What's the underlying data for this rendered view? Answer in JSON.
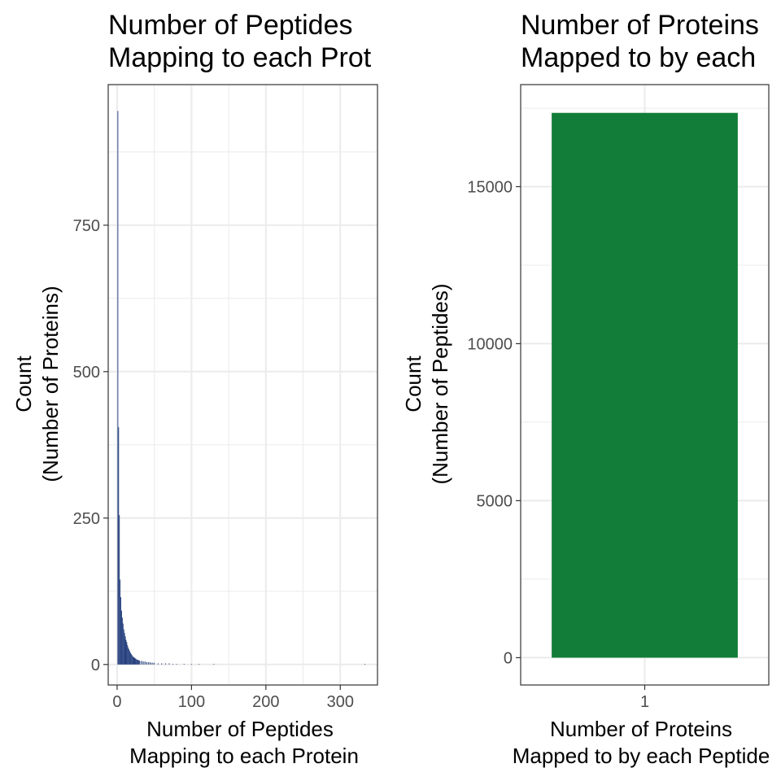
{
  "chart_data": [
    {
      "type": "bar",
      "title_lines": [
        "Number of Peptides",
        "Mapping to each Prot"
      ],
      "xlabel_lines": [
        "Number of Peptides",
        "Mapping to each Protein"
      ],
      "ylabel_lines": [
        "Count",
        "(Number of Proteins)"
      ],
      "xlim": [
        -12,
        350
      ],
      "ylim": [
        -35,
        990
      ],
      "x_ticks": [
        0,
        100,
        200,
        300
      ],
      "x_tick_labels": [
        "0",
        "100",
        "200",
        "300"
      ],
      "y_ticks": [
        0,
        250,
        500,
        750
      ],
      "y_tick_labels": [
        "0",
        "250",
        "500",
        "750"
      ],
      "bar_color": "#1f3a7a",
      "x": [
        1,
        2,
        3,
        4,
        5,
        6,
        7,
        8,
        9,
        10,
        11,
        12,
        13,
        14,
        15,
        16,
        17,
        18,
        19,
        20,
        21,
        22,
        23,
        24,
        25,
        26,
        27,
        28,
        29,
        30,
        32,
        34,
        36,
        38,
        40,
        42,
        44,
        46,
        48,
        50,
        55,
        60,
        65,
        70,
        75,
        80,
        90,
        100,
        110,
        130,
        333
      ],
      "values": [
        945,
        405,
        255,
        145,
        115,
        92,
        80,
        70,
        60,
        54,
        48,
        42,
        38,
        33,
        29,
        26,
        23,
        20,
        18,
        16,
        14,
        13,
        12,
        11,
        10,
        9,
        8,
        8,
        7,
        7,
        6,
        6,
        5,
        5,
        4,
        4,
        4,
        3,
        3,
        3,
        2,
        2,
        2,
        2,
        1,
        1,
        1,
        1,
        1,
        1,
        1
      ]
    },
    {
      "type": "bar",
      "title_lines": [
        "Number of Proteins",
        "Mapped to by each"
      ],
      "xlabel_lines": [
        "Number of Proteins",
        "Mapped to by each Peptide"
      ],
      "ylabel_lines": [
        "Count",
        "(Number of Peptides)"
      ],
      "categories": [
        "1"
      ],
      "values": [
        17350
      ],
      "ylim": [
        -870,
        18250
      ],
      "y_ticks": [
        0,
        5000,
        10000,
        15000
      ],
      "y_tick_labels": [
        "0",
        "5000",
        "10000",
        "15000"
      ],
      "bar_color": "#127d38"
    }
  ]
}
